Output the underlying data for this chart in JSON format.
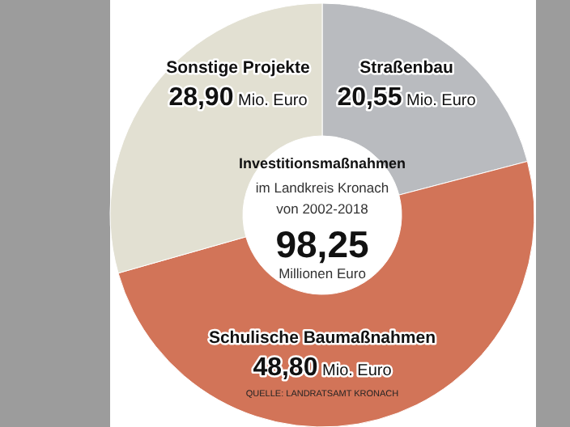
{
  "chart_data": {
    "type": "donut",
    "title": "Investitionsmaßnahmen",
    "subtitle": "im Landkreis Kronach von 2002-2018",
    "categories": [
      "Straßenbau",
      "Schulische Baumaßnahmen",
      "Sonstige Projekte"
    ],
    "values": [
      20.55,
      48.8,
      28.9
    ],
    "colors": [
      "#b9bbbf",
      "#d27458",
      "#e2e0d2"
    ],
    "value_labels": [
      "20,55 Mio. Euro",
      "48,80 Mio. Euro",
      "28,90 Mio. Euro"
    ],
    "annotations": [
      "98,25",
      "Millionen Euro",
      "QUELLE: LANDRATSAMT KRONACH"
    ]
  }
}
